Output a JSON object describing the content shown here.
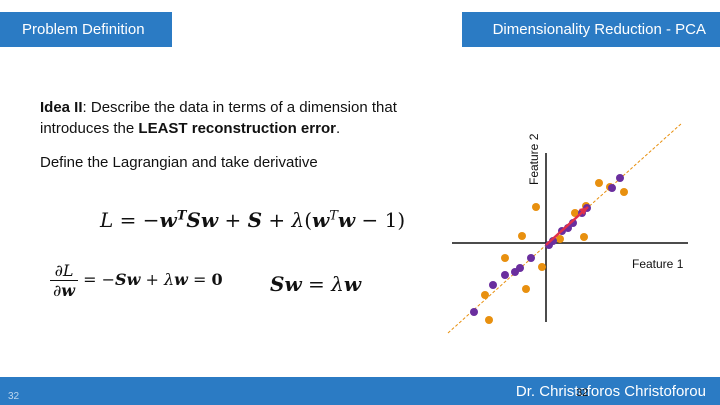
{
  "header": {
    "left_title": "Problem Definition",
    "right_title": "Dimensionality Reduction - PCA"
  },
  "content": {
    "idea_label": "Idea II",
    "idea_text_1": ": Describe the data in terms of a dimension that introduces the ",
    "idea_bold": "LEAST reconstruction error",
    "idea_end": ".",
    "lagrangian_line": "Define the Lagrangian and take derivative"
  },
  "plot": {
    "x_axis_label": "Feature 1",
    "y_axis_label": "Feature 2",
    "colors": {
      "orange": "#e8900f",
      "purple": "#6a2e9e",
      "line": "#e8900f",
      "arrow": "#e0304a"
    }
  },
  "footer": {
    "slide_number": "32",
    "author": "Dr. Christoforos Christoforou",
    "page_number": "32"
  }
}
